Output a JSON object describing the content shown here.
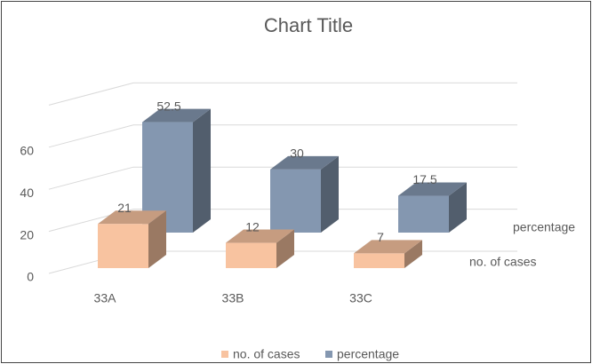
{
  "chart_data": {
    "type": "bar3d",
    "title": "Chart Title",
    "categories": [
      "33A",
      "33B",
      "33C"
    ],
    "series": [
      {
        "name": "no. of cases",
        "color": "#f8c3a0",
        "values": [
          21,
          12,
          7
        ]
      },
      {
        "name": "percentage",
        "color": "#8497b0",
        "values": [
          52.5,
          30,
          17.5
        ]
      }
    ],
    "ylim": [
      0,
      80
    ],
    "yticks": [
      0,
      20,
      40,
      60
    ],
    "grid": true,
    "legend": "bottom"
  }
}
